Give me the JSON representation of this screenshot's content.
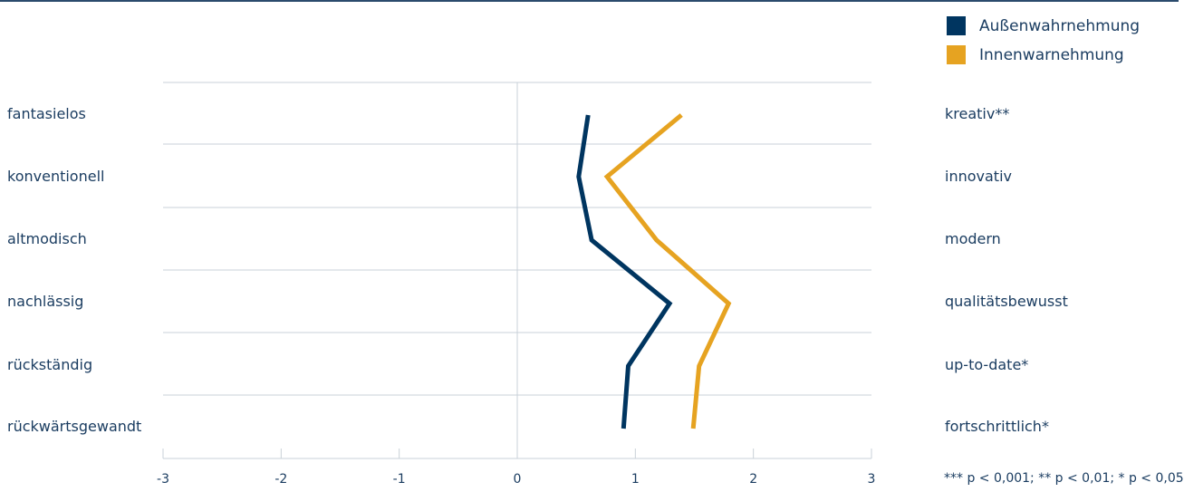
{
  "chart_data": {
    "type": "line",
    "x_range": [
      -3,
      3
    ],
    "x_ticks": [
      "-3",
      "-2",
      "-1",
      "0",
      "1",
      "2",
      "3"
    ],
    "left_labels": [
      "fantasielos",
      "konventionell",
      "altmodisch",
      "nachlässig",
      "rückständig",
      "rückwärtsgewandt"
    ],
    "right_labels": [
      "kreativ**",
      "innovativ",
      "modern",
      "qualitätsbewusst",
      "up-to-date*",
      "fortschrittlich*"
    ],
    "series": [
      {
        "name": "Außenwahrnehmung",
        "color": "#003560",
        "values": [
          0.6,
          0.52,
          0.63,
          1.29,
          0.94,
          0.9
        ]
      },
      {
        "name": "Innenwarnehmung",
        "color": "#e6a321",
        "values": [
          1.39,
          0.76,
          1.18,
          1.79,
          1.54,
          1.49
        ]
      }
    ],
    "grid": true,
    "legend_position": "top-right",
    "note": "*** p < 0,001; ** p < 0,01; * p < 0,05"
  }
}
